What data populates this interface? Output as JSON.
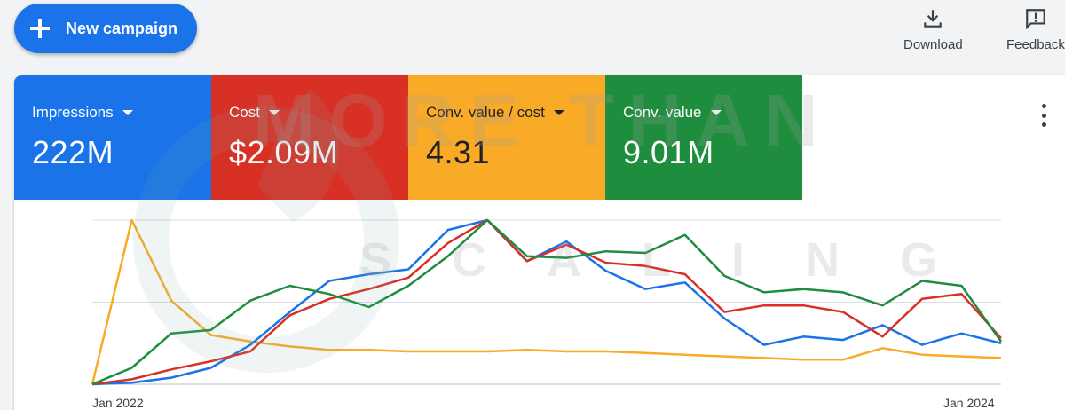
{
  "toolbar": {
    "new_campaign_label": "New campaign",
    "download_label": "Download",
    "feedback_label": "Feedback"
  },
  "metrics": [
    {
      "label": "Impressions",
      "value": "222M",
      "color": "#1a73e8"
    },
    {
      "label": "Cost",
      "value": "$2.09M",
      "color": "#d93025"
    },
    {
      "label": "Conv. value / cost",
      "value": "4.31",
      "color": "#f9ab27"
    },
    {
      "label": "Conv. value",
      "value": "9.01M",
      "color": "#1e8e3e"
    }
  ],
  "watermark": {
    "line1": "MORE THAN",
    "line2": "SCALING"
  },
  "chart_data": {
    "type": "line",
    "x": [
      "Jan 2022",
      "",
      "",
      "",
      "",
      "",
      "",
      "",
      "",
      "",
      "",
      "",
      "",
      "",
      "",
      "",
      "",
      "",
      "",
      "",
      "",
      "",
      "",
      "Jan 2024"
    ],
    "x_tick_labels": [
      "Jan 2022",
      "Jan 2024"
    ],
    "grid": true,
    "ylim": [
      0,
      100
    ],
    "series": [
      {
        "metric": "Impressions",
        "color": "#1a73e8",
        "values": [
          0,
          1,
          4,
          10,
          24,
          44,
          63,
          67,
          70,
          94,
          100,
          75,
          87,
          69,
          58,
          62,
          40,
          24,
          29,
          27,
          36,
          24,
          31,
          25
        ]
      },
      {
        "metric": "Cost",
        "color": "#d93025",
        "values": [
          0,
          3,
          9,
          14,
          20,
          42,
          52,
          58,
          65,
          86,
          100,
          75,
          85,
          74,
          72,
          67,
          44,
          48,
          48,
          44,
          29,
          52,
          55,
          28
        ]
      },
      {
        "metric": "Conv. value / cost",
        "color": "#f9ab27",
        "values": [
          0,
          100,
          51,
          30,
          26,
          23,
          21,
          21,
          20,
          20,
          20,
          21,
          20,
          20,
          19,
          18,
          17,
          16,
          15,
          15,
          22,
          18,
          17,
          16
        ]
      },
      {
        "metric": "Conv. value",
        "color": "#1e8e3e",
        "values": [
          0,
          10,
          31,
          33,
          51,
          60,
          55,
          47,
          60,
          78,
          100,
          78,
          77,
          81,
          80,
          91,
          66,
          56,
          58,
          56,
          48,
          63,
          60,
          26
        ]
      }
    ]
  }
}
